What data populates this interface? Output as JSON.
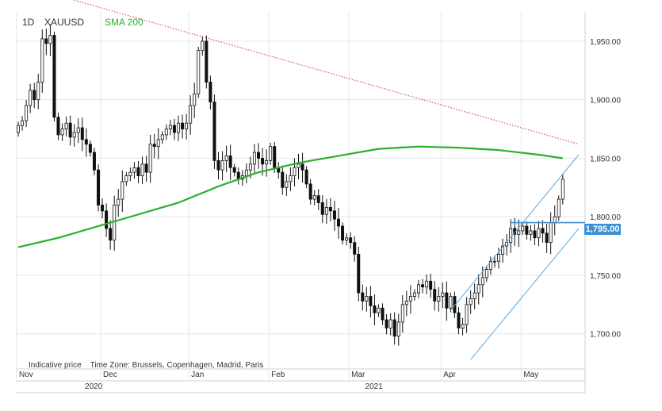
{
  "header": {
    "timeframe": "1D",
    "symbol": "XAUUSD",
    "indicator": "SMA 200"
  },
  "footnote": {
    "indicative": "Indicative price",
    "timezone": "Time Zone: Brussels, Copenhagen, Madrid, Paris"
  },
  "price_tag": "1,795.00",
  "colors": {
    "up": "#111111",
    "down": "#111111",
    "sma": "#2bb02b",
    "channel": "#5aa7e0",
    "resistance": "#e05050",
    "level": "#3d8fd6",
    "grid": "#e6e6e6"
  },
  "chart_data": {
    "type": "candlestick",
    "title": "XAUUSD 1D",
    "ylim": [
      1670,
      1975
    ],
    "yticks": [
      {
        "value": 1700,
        "label": "1,700.00"
      },
      {
        "value": 1750,
        "label": "1,750.00"
      },
      {
        "value": 1800,
        "label": "1,800.00"
      },
      {
        "value": 1850,
        "label": "1,850.00"
      },
      {
        "value": 1900,
        "label": "1,900.00"
      },
      {
        "value": 1950,
        "label": "1,950.00"
      }
    ],
    "months": [
      {
        "label": "Nov",
        "index": 0
      },
      {
        "label": "Dec",
        "index": 21
      },
      {
        "label": "Jan",
        "index": 43
      },
      {
        "label": "Feb",
        "index": 63
      },
      {
        "label": "Mar",
        "index": 83
      },
      {
        "label": "Apr",
        "index": 106
      },
      {
        "label": "May",
        "index": 126
      }
    ],
    "years": [
      {
        "label": "2020",
        "index": 21
      },
      {
        "label": "2021",
        "index": 91
      }
    ],
    "closes": [
      1878,
      1882,
      1895,
      1908,
      1900,
      1915,
      1952,
      1948,
      1955,
      1885,
      1870,
      1875,
      1880,
      1868,
      1872,
      1876,
      1866,
      1862,
      1855,
      1840,
      1810,
      1805,
      1790,
      1780,
      1810,
      1815,
      1830,
      1835,
      1838,
      1842,
      1835,
      1845,
      1838,
      1862,
      1860,
      1866,
      1870,
      1875,
      1878,
      1872,
      1880,
      1875,
      1880,
      1895,
      1905,
      1942,
      1950,
      1915,
      1898,
      1848,
      1840,
      1848,
      1852,
      1842,
      1838,
      1832,
      1835,
      1840,
      1845,
      1855,
      1850,
      1845,
      1848,
      1860,
      1842,
      1838,
      1825,
      1830,
      1835,
      1842,
      1845,
      1840,
      1828,
      1815,
      1818,
      1812,
      1802,
      1808,
      1805,
      1798,
      1792,
      1780,
      1782,
      1778,
      1768,
      1735,
      1728,
      1732,
      1724,
      1718,
      1722,
      1712,
      1705,
      1712,
      1698,
      1710,
      1725,
      1728,
      1732,
      1735,
      1742,
      1740,
      1745,
      1738,
      1728,
      1732,
      1735,
      1722,
      1732,
      1718,
      1705,
      1708,
      1725,
      1730,
      1735,
      1742,
      1748,
      1755,
      1762,
      1762,
      1768,
      1775,
      1778,
      1790,
      1785,
      1788,
      1792,
      1785,
      1788,
      1782,
      1790,
      1786,
      1778,
      1795,
      1800,
      1815,
      1832
    ],
    "sma200": [
      {
        "index": 0,
        "value": 1774
      },
      {
        "index": 10,
        "value": 1782
      },
      {
        "index": 20,
        "value": 1792
      },
      {
        "index": 30,
        "value": 1802
      },
      {
        "index": 40,
        "value": 1812
      },
      {
        "index": 50,
        "value": 1826
      },
      {
        "index": 60,
        "value": 1838
      },
      {
        "index": 70,
        "value": 1846
      },
      {
        "index": 80,
        "value": 1852
      },
      {
        "index": 90,
        "value": 1858
      },
      {
        "index": 100,
        "value": 1860
      },
      {
        "index": 110,
        "value": 1859
      },
      {
        "index": 120,
        "value": 1857
      },
      {
        "index": 130,
        "value": 1853
      },
      {
        "index": 136,
        "value": 1850
      }
    ],
    "resistance": [
      {
        "index": 14,
        "value": 1985
      },
      {
        "index": 140,
        "value": 1862
      }
    ],
    "channel_upper": [
      {
        "index": 108,
        "value": 1720
      },
      {
        "index": 140,
        "value": 1853
      }
    ],
    "channel_lower": [
      {
        "index": 113,
        "value": 1678
      },
      {
        "index": 140,
        "value": 1790
      }
    ],
    "level": {
      "value": 1795,
      "from_index": 123,
      "to_index": 140
    }
  }
}
